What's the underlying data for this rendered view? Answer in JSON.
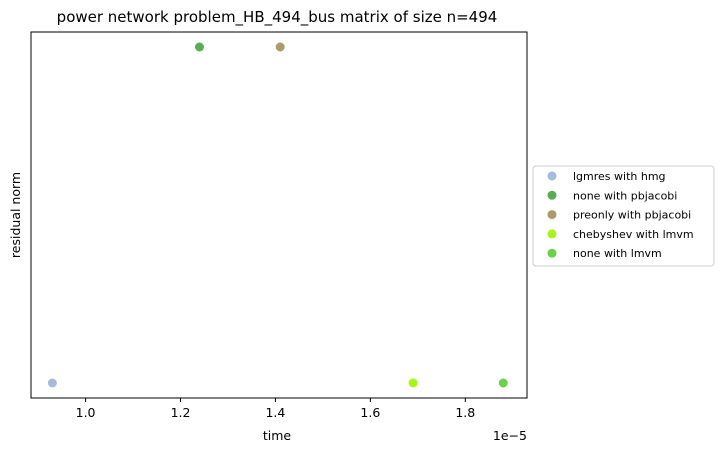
{
  "chart_data": {
    "type": "scatter",
    "title": "power network problem_HB_494_bus matrix of size n=494",
    "xlabel": "time",
    "ylabel": "residual norm",
    "x_offset_label": "1e−5",
    "xlim": [
      0.885,
      1.93
    ],
    "x_ticks": [
      1.0,
      1.2,
      1.4,
      1.6,
      1.8
    ],
    "x_tick_labels": [
      "1.0",
      "1.2",
      "1.4",
      "1.6",
      "1.8"
    ],
    "y_ticks_shown": false,
    "grid": false,
    "legend_position": "outside-right",
    "series": [
      {
        "name": "lgmres with hmg",
        "color": "#a5bcd8",
        "x": [
          0.93
        ],
        "level": [
          "low"
        ]
      },
      {
        "name": "none with pbjacobi",
        "color": "#5aad55",
        "x": [
          1.24
        ],
        "level": [
          "high"
        ]
      },
      {
        "name": "preonly with pbjacobi",
        "color": "#ad9a6c",
        "x": [
          1.41
        ],
        "level": [
          "high"
        ]
      },
      {
        "name": "chebyshev with lmvm",
        "color": "#a6f51a",
        "x": [
          1.69
        ],
        "level": [
          "low"
        ]
      },
      {
        "name": "none with lmvm",
        "color": "#6ad14a",
        "x": [
          1.88
        ],
        "level": [
          "low"
        ]
      }
    ]
  }
}
